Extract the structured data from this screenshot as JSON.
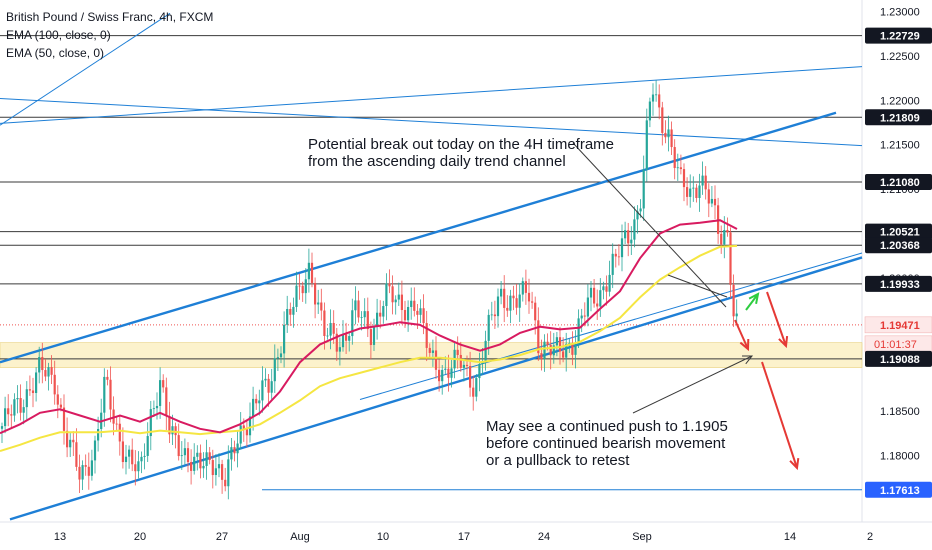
{
  "legend": {
    "title": "British Pound / Swiss Franc, 4h, FXCM",
    "ema1": "EMA (100, close, 0)",
    "ema2": "EMA (50, close, 0)"
  },
  "annotations": {
    "note1_line1": "Potential break out today on the 4H timeframe",
    "note1_line2": "from the ascending daily trend channel",
    "note2_line1": "May see a continued push to 1.1905",
    "note2_line2": "before continued bearish movement",
    "note2_line3": "or a pullback to retest"
  },
  "colors": {
    "ema100": "#f5e642",
    "ema50": "#d81b60",
    "up": "#26a69a",
    "down": "#ef5350",
    "trend": "#1e7fd6",
    "arrow_red": "#e53935",
    "arrow_green": "#2ecc40",
    "zone": "#fbeebb"
  },
  "chart_data": {
    "type": "candlestick",
    "title": "British Pound / Swiss Franc, 4h, FXCM",
    "ylim": [
      1.1725,
      1.2313
    ],
    "y_ticks": [
      1.18,
      1.185,
      1.2,
      1.205,
      1.21,
      1.215,
      1.22,
      1.225,
      1.23
    ],
    "y_tick_labels": [
      "1.18000",
      "1.18500",
      "1.20000",
      "1.20500",
      "1.21000",
      "1.21500",
      "1.22000",
      "1.22500",
      "1.23000"
    ],
    "x_ticks": [
      "13",
      "20",
      "27",
      "Aug",
      "10",
      "17",
      "24",
      "Sep",
      "14",
      "2"
    ],
    "price_labels": [
      {
        "value": 1.22729,
        "label": "1.22729",
        "style": "black"
      },
      {
        "value": 1.21809,
        "label": "1.21809",
        "style": "black"
      },
      {
        "value": 1.2108,
        "label": "1.21080",
        "style": "black"
      },
      {
        "value": 1.20521,
        "label": "1.20521",
        "style": "black"
      },
      {
        "value": 1.20368,
        "label": "1.20368",
        "style": "black"
      },
      {
        "value": 1.19933,
        "label": "1.19933",
        "style": "black"
      },
      {
        "value": 1.19471,
        "label": "1.19471",
        "style": "red"
      },
      {
        "value": 1.19088,
        "label": "1.19088",
        "style": "black"
      },
      {
        "value": 1.17613,
        "label": "1.17613",
        "style": "blue"
      }
    ],
    "countdown": "01:01:37",
    "last_price": 1.19471,
    "horizontal_levels": [
      1.22729,
      1.21809,
      1.2108,
      1.20521,
      1.20368,
      1.19933,
      1.19088
    ],
    "support_zone": [
      1.1899,
      1.1927
    ],
    "blue_level": 1.17613,
    "price_path": [
      [
        0,
        1.183
      ],
      [
        20,
        1.186
      ],
      [
        40,
        1.1895
      ],
      [
        55,
        1.1885
      ],
      [
        65,
        1.1825
      ],
      [
        80,
        1.1775
      ],
      [
        95,
        1.181
      ],
      [
        105,
        1.188
      ],
      [
        115,
        1.1835
      ],
      [
        125,
        1.1805
      ],
      [
        140,
        1.1775
      ],
      [
        150,
        1.1845
      ],
      [
        160,
        1.1885
      ],
      [
        170,
        1.182
      ],
      [
        185,
        1.1805
      ],
      [
        200,
        1.1785
      ],
      [
        215,
        1.1795
      ],
      [
        225,
        1.1775
      ],
      [
        240,
        1.182
      ],
      [
        255,
        1.1865
      ],
      [
        270,
        1.1875
      ],
      [
        285,
        1.1955
      ],
      [
        300,
        1.198
      ],
      [
        310,
        1.2015
      ],
      [
        325,
        1.1935
      ],
      [
        340,
        1.1925
      ],
      [
        355,
        1.1965
      ],
      [
        370,
        1.1935
      ],
      [
        385,
        1.1985
      ],
      [
        400,
        1.1965
      ],
      [
        415,
        1.1975
      ],
      [
        430,
        1.191
      ],
      [
        445,
        1.1895
      ],
      [
        460,
        1.1905
      ],
      [
        475,
        1.188
      ],
      [
        490,
        1.1945
      ],
      [
        500,
        1.1985
      ],
      [
        515,
        1.197
      ],
      [
        530,
        1.1985
      ],
      [
        540,
        1.192
      ],
      [
        555,
        1.1915
      ],
      [
        565,
        1.1925
      ],
      [
        575,
        1.193
      ],
      [
        590,
        1.1975
      ],
      [
        600,
        1.1985
      ],
      [
        615,
        1.2015
      ],
      [
        625,
        1.2045
      ],
      [
        635,
        1.2065
      ],
      [
        642,
        1.2095
      ],
      [
        648,
        1.2175
      ],
      [
        652,
        1.2215
      ],
      [
        660,
        1.2185
      ],
      [
        668,
        1.2165
      ],
      [
        680,
        1.2105
      ],
      [
        690,
        1.2095
      ],
      [
        700,
        1.2115
      ],
      [
        710,
        1.2085
      ],
      [
        720,
        1.2045
      ],
      [
        728,
        1.2055
      ],
      [
        733,
        1.1965
      ],
      [
        737,
        1.1947
      ]
    ],
    "ema50_path": [
      [
        0,
        1.1825
      ],
      [
        20,
        1.1835
      ],
      [
        40,
        1.1848
      ],
      [
        60,
        1.1852
      ],
      [
        80,
        1.1845
      ],
      [
        100,
        1.1838
      ],
      [
        120,
        1.1845
      ],
      [
        140,
        1.1838
      ],
      [
        160,
        1.1848
      ],
      [
        180,
        1.1838
      ],
      [
        200,
        1.183
      ],
      [
        220,
        1.1826
      ],
      [
        240,
        1.1835
      ],
      [
        260,
        1.1848
      ],
      [
        280,
        1.1872
      ],
      [
        300,
        1.1905
      ],
      [
        320,
        1.1925
      ],
      [
        340,
        1.1935
      ],
      [
        360,
        1.1943
      ],
      [
        380,
        1.1946
      ],
      [
        400,
        1.195
      ],
      [
        420,
        1.1947
      ],
      [
        440,
        1.1935
      ],
      [
        460,
        1.1925
      ],
      [
        480,
        1.1918
      ],
      [
        500,
        1.1925
      ],
      [
        520,
        1.1938
      ],
      [
        540,
        1.1945
      ],
      [
        560,
        1.1942
      ],
      [
        580,
        1.1944
      ],
      [
        600,
        1.1965
      ],
      [
        620,
        1.1985
      ],
      [
        640,
        1.2022
      ],
      [
        660,
        1.205
      ],
      [
        680,
        1.206
      ],
      [
        700,
        1.2062
      ],
      [
        720,
        1.2065
      ],
      [
        737,
        1.2055
      ]
    ],
    "ema100_path": [
      [
        0,
        1.1805
      ],
      [
        20,
        1.1812
      ],
      [
        40,
        1.182
      ],
      [
        60,
        1.1826
      ],
      [
        80,
        1.1826
      ],
      [
        100,
        1.1826
      ],
      [
        120,
        1.1828
      ],
      [
        140,
        1.1825
      ],
      [
        160,
        1.1828
      ],
      [
        180,
        1.1826
      ],
      [
        200,
        1.1824
      ],
      [
        220,
        1.1826
      ],
      [
        240,
        1.1828
      ],
      [
        260,
        1.1835
      ],
      [
        280,
        1.1848
      ],
      [
        300,
        1.1862
      ],
      [
        320,
        1.1878
      ],
      [
        340,
        1.1887
      ],
      [
        360,
        1.1893
      ],
      [
        380,
        1.1899
      ],
      [
        400,
        1.1905
      ],
      [
        420,
        1.191
      ],
      [
        440,
        1.191
      ],
      [
        460,
        1.1908
      ],
      [
        480,
        1.1905
      ],
      [
        500,
        1.1908
      ],
      [
        520,
        1.1913
      ],
      [
        540,
        1.192
      ],
      [
        560,
        1.1922
      ],
      [
        580,
        1.1928
      ],
      [
        600,
        1.194
      ],
      [
        620,
        1.1955
      ],
      [
        640,
        1.1978
      ],
      [
        660,
        1.1998
      ],
      [
        680,
        1.2012
      ],
      [
        700,
        1.2025
      ],
      [
        720,
        1.2035
      ],
      [
        737,
        1.2036
      ]
    ]
  }
}
